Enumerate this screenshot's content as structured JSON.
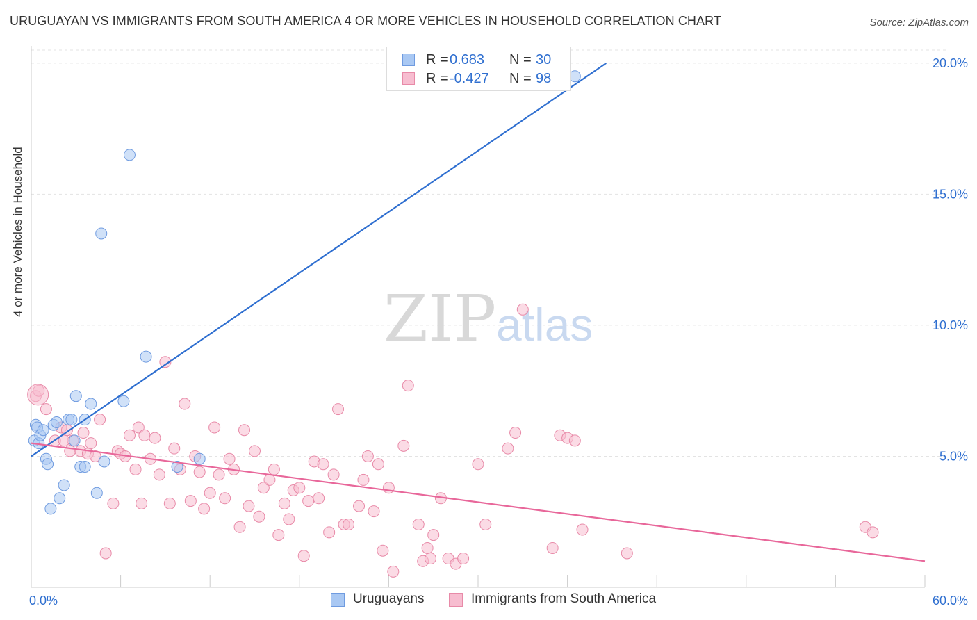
{
  "title": "URUGUAYAN VS IMMIGRANTS FROM SOUTH AMERICA 4 OR MORE VEHICLES IN HOUSEHOLD CORRELATION CHART",
  "source": "Source: ZipAtlas.com",
  "watermark": {
    "zip": "ZIP",
    "atlas": "atlas"
  },
  "legend_top": {
    "rows": [
      {
        "r_label": "R =",
        "r_value": "0.683",
        "n_label": "N =",
        "n_value": "30",
        "color": "#a9c8f3",
        "border": "#6f9be0"
      },
      {
        "r_label": "R =",
        "r_value": "-0.427",
        "n_label": "N =",
        "n_value": "98",
        "color": "#f7bdd0",
        "border": "#e88aa8"
      }
    ]
  },
  "legend_bottom": [
    {
      "label": "Uruguayans",
      "color": "#a9c8f3",
      "border": "#6f9be0"
    },
    {
      "label": "Immigrants from South America",
      "color": "#f7bdd0",
      "border": "#e88aa8"
    }
  ],
  "chart_data": {
    "type": "scatter",
    "title": "URUGUAYAN VS IMMIGRANTS FROM SOUTH AMERICA 4 OR MORE VEHICLES IN HOUSEHOLD CORRELATION CHART",
    "xlabel": "",
    "ylabel": "4 or more Vehicles in Household",
    "xlim": [
      0,
      60
    ],
    "ylim": [
      0,
      20.5
    ],
    "x_tick_labels": [
      "0.0%",
      "60.0%"
    ],
    "y_ticks": [
      5,
      10,
      15,
      20
    ],
    "y_tick_labels": [
      "5.0%",
      "10.0%",
      "15.0%",
      "20.0%"
    ],
    "grid": true,
    "legend_position": "top-center",
    "colors": {
      "blue": "#2f6fd0",
      "blue_fill": "#a9c8f3",
      "pink": "#e8679a",
      "pink_fill": "#f7bdd0",
      "tick_label": "#2f6fd0"
    },
    "series": [
      {
        "name": "Uruguayans",
        "trend": {
          "x": [
            0.0,
            38.6
          ],
          "y": [
            5.0,
            20.0
          ]
        },
        "points": [
          [
            0.2,
            5.6
          ],
          [
            0.3,
            6.2
          ],
          [
            0.4,
            6.1
          ],
          [
            0.5,
            5.5
          ],
          [
            0.6,
            5.8
          ],
          [
            0.8,
            6.0
          ],
          [
            1.0,
            4.9
          ],
          [
            1.1,
            4.7
          ],
          [
            1.3,
            3.0
          ],
          [
            1.5,
            6.2
          ],
          [
            1.7,
            6.3
          ],
          [
            1.9,
            3.4
          ],
          [
            2.2,
            3.9
          ],
          [
            2.5,
            6.4
          ],
          [
            2.7,
            6.4
          ],
          [
            2.9,
            5.6
          ],
          [
            3.0,
            7.3
          ],
          [
            3.3,
            4.6
          ],
          [
            3.6,
            4.6
          ],
          [
            3.6,
            6.4
          ],
          [
            4.0,
            7.0
          ],
          [
            4.4,
            3.6
          ],
          [
            4.9,
            4.8
          ],
          [
            4.7,
            13.5
          ],
          [
            6.2,
            7.1
          ],
          [
            6.6,
            16.5
          ],
          [
            7.7,
            8.8
          ],
          [
            9.8,
            4.6
          ],
          [
            11.3,
            4.9
          ],
          [
            36.5,
            19.5
          ]
        ]
      },
      {
        "name": "Immigrants from South America",
        "trend": {
          "x": [
            0.0,
            60.0
          ],
          "y": [
            5.5,
            1.0
          ]
        },
        "points": [
          [
            0.3,
            7.3
          ],
          [
            0.5,
            7.5
          ],
          [
            1.0,
            6.8
          ],
          [
            1.6,
            5.6
          ],
          [
            2.0,
            6.1
          ],
          [
            2.4,
            6.0
          ],
          [
            2.6,
            5.2
          ],
          [
            2.8,
            5.6
          ],
          [
            3.3,
            5.2
          ],
          [
            3.5,
            5.9
          ],
          [
            3.8,
            5.1
          ],
          [
            4.0,
            5.5
          ],
          [
            4.3,
            5.0
          ],
          [
            4.6,
            6.4
          ],
          [
            5.0,
            1.3
          ],
          [
            5.5,
            3.2
          ],
          [
            5.8,
            5.2
          ],
          [
            6.0,
            5.1
          ],
          [
            6.3,
            5.0
          ],
          [
            6.6,
            5.8
          ],
          [
            7.0,
            4.5
          ],
          [
            7.2,
            6.1
          ],
          [
            7.6,
            5.8
          ],
          [
            8.0,
            4.9
          ],
          [
            8.3,
            5.7
          ],
          [
            8.6,
            4.3
          ],
          [
            9.0,
            8.6
          ],
          [
            9.3,
            3.2
          ],
          [
            9.6,
            5.3
          ],
          [
            10.0,
            4.5
          ],
          [
            10.3,
            7.0
          ],
          [
            10.7,
            3.3
          ],
          [
            11.0,
            5.0
          ],
          [
            11.3,
            4.4
          ],
          [
            11.6,
            3.0
          ],
          [
            12.0,
            3.6
          ],
          [
            12.3,
            6.1
          ],
          [
            12.6,
            4.3
          ],
          [
            13.0,
            3.4
          ],
          [
            13.3,
            4.9
          ],
          [
            13.6,
            4.5
          ],
          [
            14.0,
            2.3
          ],
          [
            14.3,
            6.0
          ],
          [
            14.6,
            3.1
          ],
          [
            15.0,
            5.2
          ],
          [
            15.3,
            2.7
          ],
          [
            15.6,
            3.8
          ],
          [
            16.0,
            4.1
          ],
          [
            16.3,
            4.5
          ],
          [
            16.6,
            2.0
          ],
          [
            17.0,
            3.2
          ],
          [
            17.3,
            2.6
          ],
          [
            17.6,
            3.7
          ],
          [
            18.0,
            3.8
          ],
          [
            18.3,
            1.2
          ],
          [
            18.6,
            3.3
          ],
          [
            19.0,
            4.8
          ],
          [
            19.3,
            3.4
          ],
          [
            19.6,
            4.7
          ],
          [
            20.0,
            2.1
          ],
          [
            20.3,
            4.3
          ],
          [
            20.6,
            6.8
          ],
          [
            21.0,
            2.4
          ],
          [
            21.3,
            2.4
          ],
          [
            22.0,
            3.1
          ],
          [
            22.3,
            4.1
          ],
          [
            22.6,
            5.0
          ],
          [
            23.0,
            2.9
          ],
          [
            23.3,
            4.7
          ],
          [
            23.6,
            1.4
          ],
          [
            24.0,
            3.8
          ],
          [
            24.3,
            0.6
          ],
          [
            25.0,
            5.4
          ],
          [
            25.3,
            7.7
          ],
          [
            26.0,
            2.4
          ],
          [
            26.3,
            1.0
          ],
          [
            26.6,
            1.5
          ],
          [
            27.0,
            2.0
          ],
          [
            27.5,
            3.4
          ],
          [
            28.0,
            1.1
          ],
          [
            28.5,
            0.9
          ],
          [
            29.0,
            1.1
          ],
          [
            30.0,
            4.7
          ],
          [
            30.5,
            2.4
          ],
          [
            32.0,
            5.3
          ],
          [
            32.5,
            5.9
          ],
          [
            33.0,
            10.6
          ],
          [
            35.0,
            1.5
          ],
          [
            35.5,
            5.8
          ],
          [
            36.0,
            5.7
          ],
          [
            36.5,
            5.6
          ],
          [
            37.0,
            2.2
          ],
          [
            40.0,
            1.3
          ],
          [
            56.0,
            2.3
          ],
          [
            56.5,
            2.1
          ],
          [
            2.2,
            5.6
          ],
          [
            7.4,
            3.2
          ],
          [
            26.8,
            1.1
          ]
        ]
      }
    ]
  }
}
